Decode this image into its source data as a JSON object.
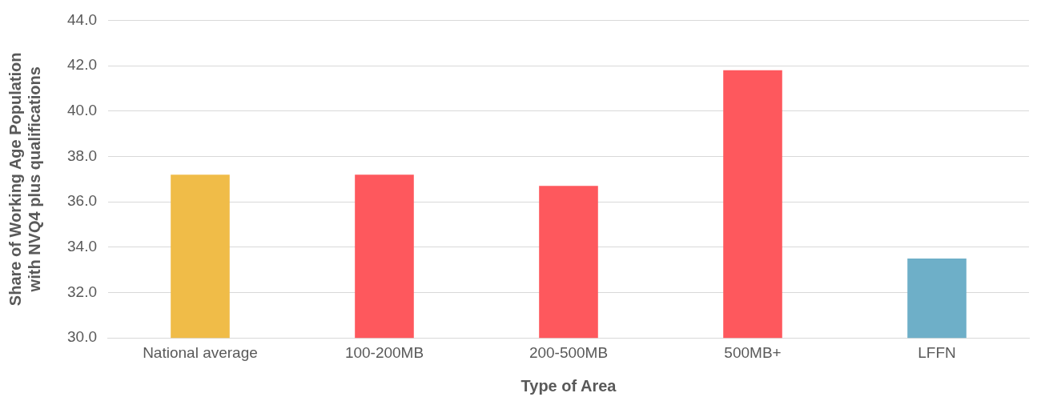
{
  "chart_data": {
    "type": "bar",
    "xlabel": "Type of Area",
    "ylabel": "Share of Working Age Population\nwith NVQ4 plus qualifications",
    "categories": [
      "National average",
      "100-200MB",
      "200-500MB",
      "500MB+",
      "LFFN"
    ],
    "values": [
      37.2,
      37.2,
      36.7,
      41.8,
      33.5
    ],
    "colors": [
      "#f0bc48",
      "#fe585d",
      "#fe585d",
      "#fe585d",
      "#6eafc8"
    ],
    "ylim": [
      30,
      44
    ],
    "yticks": [
      {
        "value": 30,
        "label": "30.0"
      },
      {
        "value": 32,
        "label": "32.0"
      },
      {
        "value": 34,
        "label": "34.0"
      },
      {
        "value": 36,
        "label": "36.0"
      },
      {
        "value": 38,
        "label": "38.0"
      },
      {
        "value": 40,
        "label": "40.0"
      },
      {
        "value": 42,
        "label": "42.0"
      },
      {
        "value": 44,
        "label": "44.0"
      }
    ],
    "grid": "y",
    "legend": false
  }
}
